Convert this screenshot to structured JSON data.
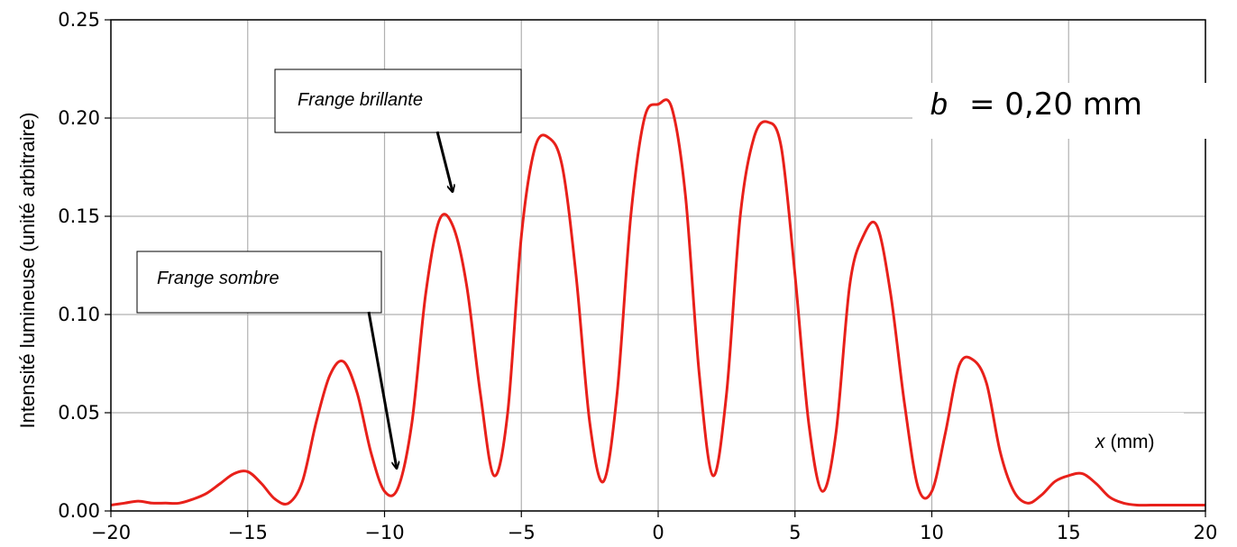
{
  "chart_data": {
    "type": "line",
    "xlim": [
      -20,
      20
    ],
    "ylim": [
      0,
      0.25
    ],
    "xticks": [
      "−20",
      "−15",
      "−10",
      "−5",
      "0",
      "5",
      "10",
      "15",
      "20"
    ],
    "yticks": [
      "0.00",
      "0.05",
      "0.10",
      "0.15",
      "0.20",
      "0.25"
    ],
    "ylabel": "Intensité lumineuse (unité arbitraire)",
    "xlabel_var": "x",
    "xlabel_unit": "(mm)",
    "grid": true,
    "line_color": "#e8201a",
    "parameter": {
      "var": "b",
      "text": "= 0,20 mm"
    },
    "annotations": [
      {
        "text": "Frange brillante",
        "x": -7.8,
        "y": 0.15
      },
      {
        "text": "Frange sombre",
        "x": -9.7,
        "y": 0.01
      }
    ],
    "series": [
      {
        "x": [
          -20,
          -19.5,
          -19,
          -18.5,
          -18,
          -17.5,
          -17,
          -16.5,
          -16,
          -15.5,
          -15,
          -14.5,
          -14,
          -13.5,
          -13,
          -12.5,
          -12,
          -11.5,
          -11,
          -10.5,
          -10,
          -9.5,
          -9,
          -8.5,
          -8,
          -7.5,
          -7,
          -6.5,
          -6,
          -5.5,
          -5,
          -4.5,
          -4,
          -3.5,
          -3,
          -2.5,
          -2,
          -1.5,
          -1,
          -0.5,
          0,
          0.5,
          1,
          1.5,
          2,
          2.5,
          3,
          3.5,
          4,
          4.5,
          5,
          5.5,
          6,
          6.5,
          7,
          7.5,
          8,
          8.5,
          9,
          9.5,
          10,
          10.5,
          11,
          11.5,
          12,
          12.5,
          13,
          13.5,
          14,
          14.5,
          15,
          15.5,
          16,
          16.5,
          17,
          17.5,
          18,
          18.5,
          19,
          19.5,
          20
        ],
        "y": [
          0.003,
          0.004,
          0.005,
          0.004,
          0.004,
          0.004,
          0.006,
          0.009,
          0.014,
          0.019,
          0.02,
          0.014,
          0.006,
          0.004,
          0.015,
          0.045,
          0.069,
          0.076,
          0.06,
          0.03,
          0.01,
          0.012,
          0.045,
          0.11,
          0.148,
          0.145,
          0.115,
          0.06,
          0.018,
          0.05,
          0.14,
          0.185,
          0.19,
          0.175,
          0.12,
          0.045,
          0.015,
          0.06,
          0.15,
          0.2,
          0.207,
          0.205,
          0.16,
          0.07,
          0.018,
          0.06,
          0.15,
          0.19,
          0.198,
          0.185,
          0.12,
          0.045,
          0.01,
          0.04,
          0.115,
          0.14,
          0.145,
          0.11,
          0.055,
          0.012,
          0.01,
          0.04,
          0.074,
          0.077,
          0.065,
          0.03,
          0.01,
          0.004,
          0.008,
          0.015,
          0.018,
          0.019,
          0.014,
          0.007,
          0.004,
          0.003,
          0.003,
          0.003,
          0.003,
          0.003,
          0.003
        ]
      }
    ]
  }
}
